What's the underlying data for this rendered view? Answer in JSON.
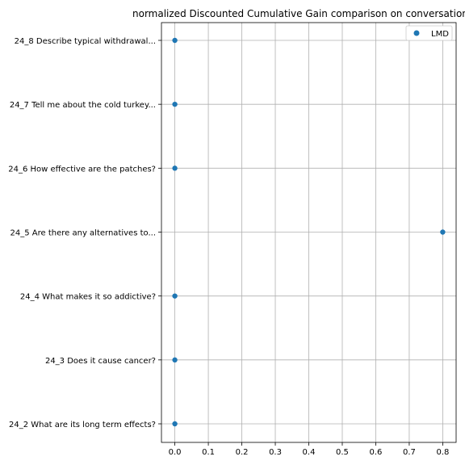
{
  "chart_data": {
    "type": "scatter",
    "title": "normalized Discounted Cumulative Gain comparison on conversation",
    "xlabel": "",
    "ylabel": "",
    "xlim": [
      -0.04,
      0.84
    ],
    "xticks": [
      "0.0",
      "0.1",
      "0.2",
      "0.3",
      "0.4",
      "0.5",
      "0.6",
      "0.7",
      "0.8"
    ],
    "categories": [
      "24_8 Describe typical withdrawal...",
      "24_7 Tell me about the cold turkey...",
      "24_6 How effective are the patches?",
      "24_5 Are there any alternatives to...",
      "24_4 What makes it so addictive?",
      "24_3 Does it cause cancer?",
      "24_2 What are its long term effects?"
    ],
    "series": [
      {
        "name": "LMD",
        "values": [
          0.0,
          0.0,
          0.0,
          0.8,
          0.0,
          0.0,
          0.0
        ],
        "color": "#1f77b4"
      }
    ],
    "grid": true,
    "legend": "top-right"
  }
}
